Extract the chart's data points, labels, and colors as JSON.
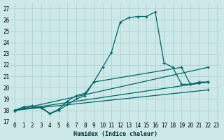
{
  "xlabel": "Humidex (Indice chaleur)",
  "bg_color": "#cce8e8",
  "grid_color": "#aacccc",
  "line_color": "#006666",
  "xlim": [
    -0.5,
    23.5
  ],
  "ylim": [
    17,
    27.5
  ],
  "xticks": [
    0,
    1,
    2,
    3,
    4,
    5,
    6,
    7,
    8,
    9,
    10,
    11,
    12,
    13,
    14,
    15,
    16,
    17,
    18,
    19,
    20,
    21,
    22,
    23
  ],
  "yticks": [
    17,
    18,
    19,
    20,
    21,
    22,
    23,
    24,
    25,
    26,
    27
  ],
  "series": [
    {
      "x": [
        0,
        1,
        2,
        3,
        4,
        5,
        6,
        7,
        8,
        9,
        10,
        11,
        12,
        13,
        14,
        15,
        16,
        17,
        18,
        19,
        20,
        21,
        22
      ],
      "y": [
        18.0,
        18.3,
        18.4,
        18.2,
        17.7,
        18.1,
        18.8,
        19.3,
        19.5,
        20.5,
        21.8,
        23.1,
        25.8,
        26.2,
        26.3,
        26.3,
        26.7,
        22.2,
        21.8,
        20.3,
        20.3,
        20.5,
        20.5
      ]
    },
    {
      "x": [
        0,
        22
      ],
      "y": [
        18.0,
        21.8
      ]
    },
    {
      "x": [
        0,
        22
      ],
      "y": [
        18.0,
        20.5
      ]
    },
    {
      "x": [
        0,
        22
      ],
      "y": [
        18.0,
        19.8
      ]
    },
    {
      "x": [
        0,
        3,
        4,
        5,
        6,
        7,
        8,
        9,
        19,
        20,
        21,
        22
      ],
      "y": [
        18.0,
        18.3,
        17.7,
        18.0,
        18.5,
        19.0,
        19.3,
        20.5,
        21.8,
        20.3,
        20.4,
        20.5
      ]
    }
  ]
}
